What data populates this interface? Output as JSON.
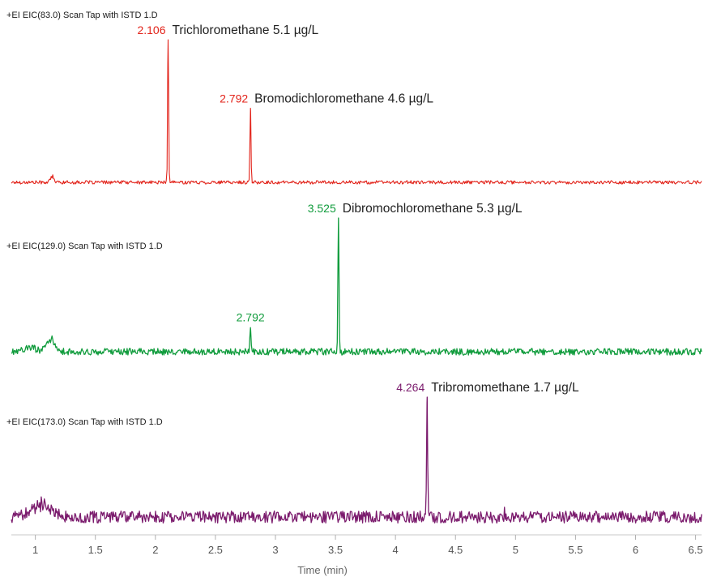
{
  "chart_data": {
    "type": "line",
    "xlabel": "Time (min)",
    "xlim": [
      0.8,
      6.55
    ],
    "xticks": [
      "1",
      "1.5",
      "2",
      "2.5",
      "3",
      "3.5",
      "4",
      "4.5",
      "5",
      "5.5",
      "6",
      "6.5"
    ],
    "series": [
      {
        "name": "+EI EIC(83.0) Scan Tap with  ISTD 1.D",
        "color": "#e2231a",
        "noise": 0.012,
        "bumps": [
          {
            "x": 1.14,
            "height": 0.05,
            "width": 0.02
          }
        ],
        "peaks": [
          {
            "rt": "2.106",
            "x": 2.106,
            "compound": "Trichloromethane 5.1 µg/L",
            "height": 1.0
          },
          {
            "rt": "2.792",
            "x": 2.792,
            "compound": "Bromodichloromethane 4.6 µg/L",
            "height": 0.52
          }
        ]
      },
      {
        "name": "+EI EIC(129.0) Scan Tap with  ISTD 1.D",
        "color": "#119c3d",
        "noise": 0.025,
        "bumps": [
          {
            "x": 1.13,
            "height": 0.1,
            "width": 0.05
          },
          {
            "x": 0.95,
            "height": 0.04,
            "width": 0.08
          }
        ],
        "peaks": [
          {
            "rt": "2.792",
            "x": 2.792,
            "compound": "",
            "height": 0.18
          },
          {
            "rt": "3.525",
            "x": 3.525,
            "compound": "Dibromochloromethane 5.3 µg/L",
            "height": 1.0
          }
        ]
      },
      {
        "name": "+EI EIC(173.0) Scan Tap with  ISTD 1.D",
        "color": "#7b1b6d",
        "noise": 0.05,
        "bumps": [
          {
            "x": 1.05,
            "height": 0.14,
            "width": 0.12
          },
          {
            "x": 4.91,
            "height": 0.1,
            "width": 0.005
          }
        ],
        "peaks": [
          {
            "rt": "4.264",
            "x": 4.264,
            "compound": "Tribromomethane 1.7 µg/L",
            "height": 1.0
          }
        ]
      }
    ]
  }
}
